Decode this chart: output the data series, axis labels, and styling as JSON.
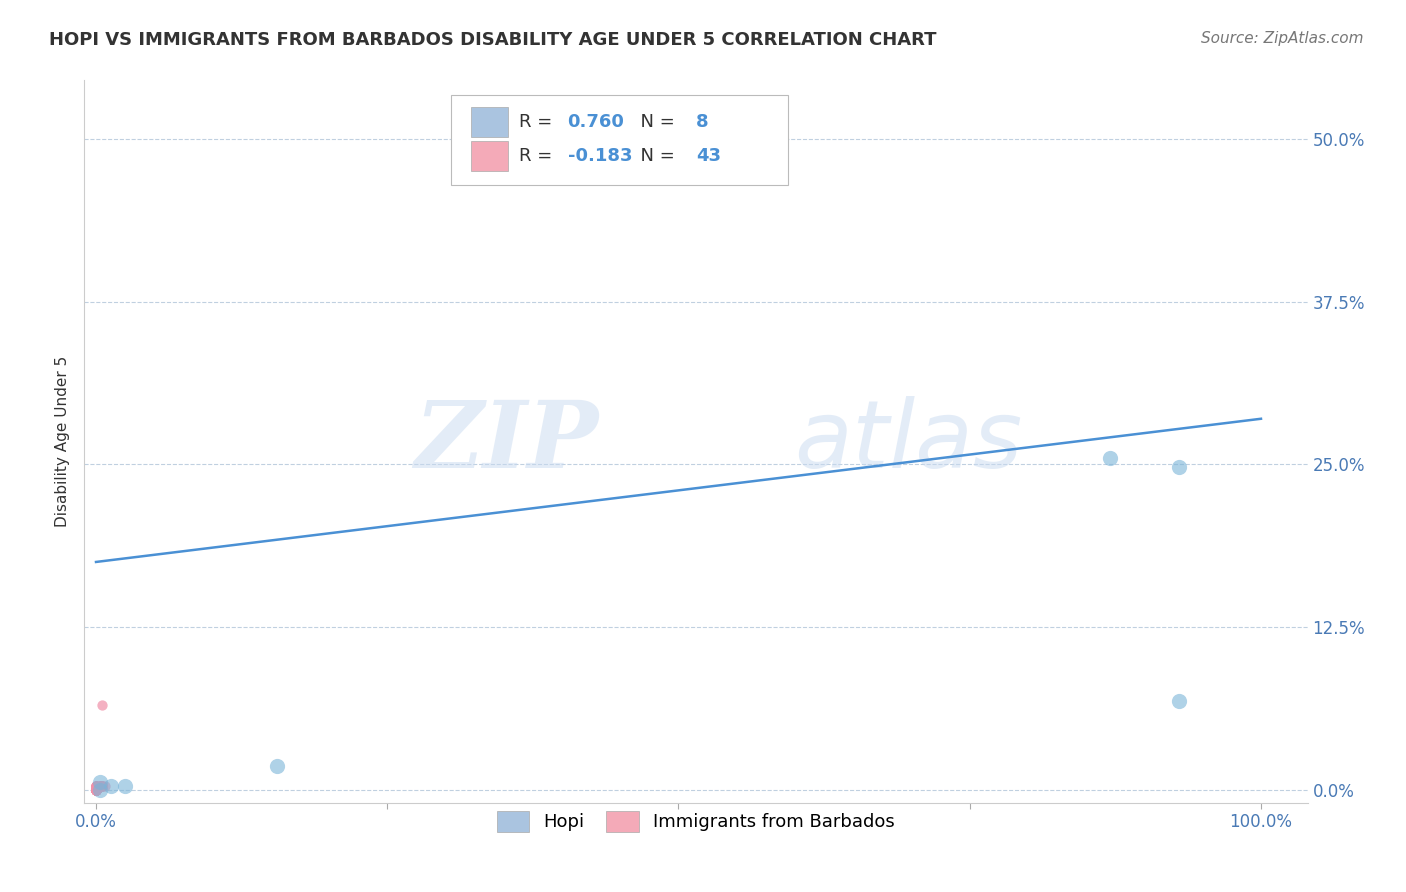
{
  "title": "HOPI VS IMMIGRANTS FROM BARBADOS DISABILITY AGE UNDER 5 CORRELATION CHART",
  "source": "Source: ZipAtlas.com",
  "xlabel": "",
  "ylabel": "Disability Age Under 5",
  "xlim": [
    -0.01,
    1.04
  ],
  "ylim": [
    -0.01,
    0.545
  ],
  "xticks": [
    0.0,
    0.25,
    0.5,
    0.75,
    1.0
  ],
  "xticklabels": [
    "0.0%",
    "",
    "",
    "",
    "100.0%"
  ],
  "yticks": [
    0.0,
    0.125,
    0.25,
    0.375,
    0.5
  ],
  "yticklabels": [
    "0.0%",
    "12.5%",
    "25.0%",
    "37.5%",
    "50.0%"
  ],
  "hopi_color": "#aac4e0",
  "barbados_color": "#f4aab8",
  "hopi_scatter_color": "#7ab4d8",
  "barbados_scatter_color": "#f090a8",
  "line_color": "#4a90d4",
  "r_hopi": 0.76,
  "n_hopi": 8,
  "r_barbados": -0.183,
  "n_barbados": 43,
  "legend_label_hopi": "Hopi",
  "legend_label_barbados": "Immigrants from Barbados",
  "hopi_x": [
    0.003,
    0.013,
    0.003,
    0.025,
    0.155,
    0.87,
    0.93,
    0.93
  ],
  "hopi_y": [
    0.0,
    0.003,
    0.006,
    0.003,
    0.018,
    0.255,
    0.248,
    0.068
  ],
  "barbados_x": [
    0.0,
    0.0,
    0.0,
    0.0,
    0.0,
    0.0,
    0.0,
    0.0,
    0.0,
    0.0,
    0.0,
    0.0,
    0.0,
    0.0,
    0.0,
    0.0,
    0.0,
    0.0,
    0.0,
    0.0,
    0.0,
    0.0,
    0.0,
    0.0,
    0.0,
    0.0,
    0.0,
    0.0,
    0.0,
    0.0,
    0.0,
    0.003,
    0.003,
    0.003,
    0.003,
    0.003,
    0.005,
    0.005,
    0.005,
    0.005,
    0.005,
    0.005,
    0.008
  ],
  "barbados_y": [
    0.0,
    0.0,
    0.0,
    0.0,
    0.0,
    0.0,
    0.0,
    0.0,
    0.0,
    0.0,
    0.0,
    0.0,
    0.0,
    0.0,
    0.0,
    0.0,
    0.0,
    0.0,
    0.0,
    0.0,
    0.0,
    0.0,
    0.0,
    0.0,
    0.003,
    0.003,
    0.003,
    0.003,
    0.003,
    0.003,
    0.003,
    0.003,
    0.003,
    0.003,
    0.003,
    0.003,
    0.003,
    0.003,
    0.003,
    0.003,
    0.065,
    0.003,
    0.003
  ],
  "line_x": [
    0.0,
    1.0
  ],
  "line_y": [
    0.175,
    0.285
  ],
  "watermark_zip": "ZIP",
  "watermark_atlas": "atlas",
  "background_color": "#ffffff",
  "plot_background": "#ffffff",
  "grid_color": "#c0d0e0",
  "title_fontsize": 13,
  "axis_label_fontsize": 11,
  "tick_fontsize": 12,
  "legend_fontsize": 13,
  "source_fontsize": 11
}
